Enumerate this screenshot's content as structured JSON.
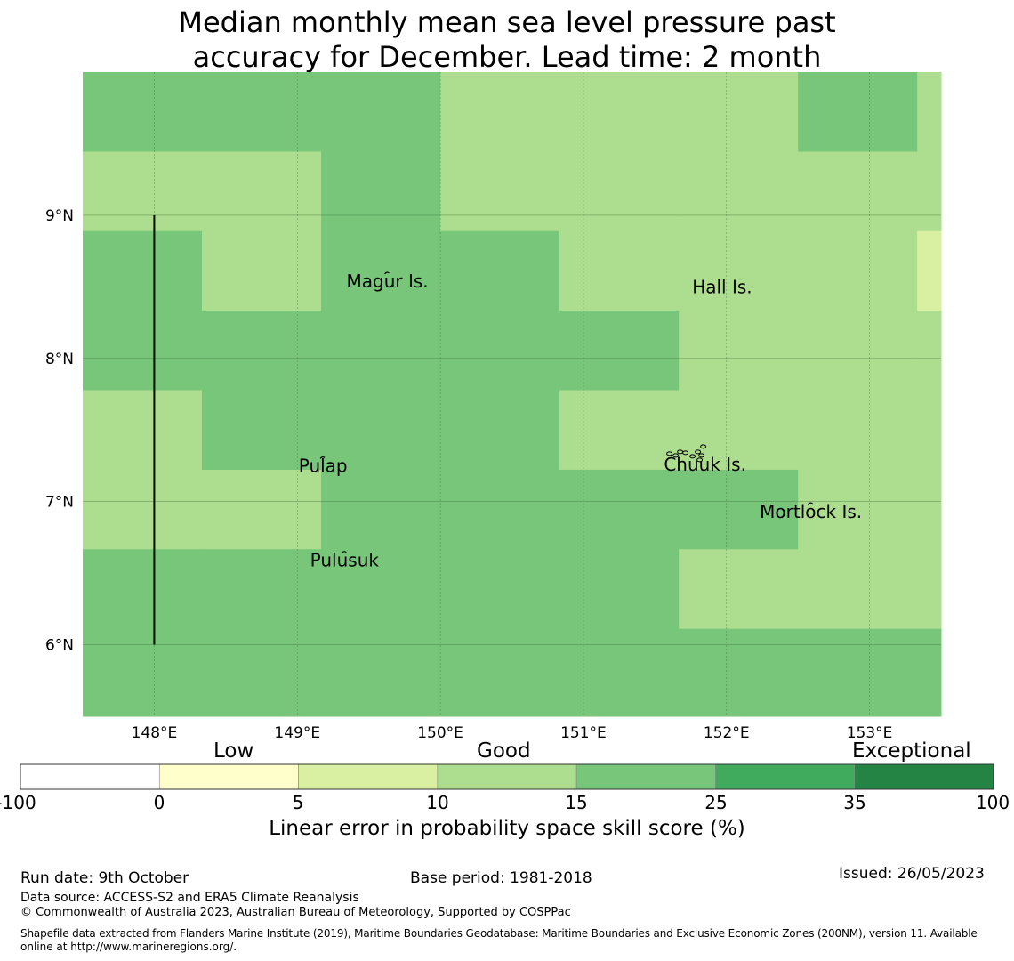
{
  "title": {
    "line1": "Median monthly mean sea level pressure past",
    "line2": "accuracy for December. Lead time: 2 month"
  },
  "map": {
    "lon_range": [
      147.5,
      153.5
    ],
    "lat_range": [
      5.5,
      10.0
    ],
    "lon_ticks": [
      {
        "value": 148,
        "label": "148°E"
      },
      {
        "value": 149,
        "label": "149°E"
      },
      {
        "value": 150,
        "label": "150°E"
      },
      {
        "value": 151,
        "label": "151°E"
      },
      {
        "value": 152,
        "label": "152°E"
      },
      {
        "value": 153,
        "label": "153°E"
      }
    ],
    "lat_ticks": [
      {
        "value": 9,
        "label": "9°N"
      },
      {
        "value": 8,
        "label": "8°N"
      },
      {
        "value": 7,
        "label": "7°N"
      },
      {
        "value": 6,
        "label": "6°N"
      }
    ],
    "grid_lons": [
      147.5,
      148.333,
      149.167,
      150.0,
      150.833,
      151.667,
      152.5,
      153.333,
      153.5
    ],
    "grid_lats": [
      10.0,
      9.444,
      8.889,
      8.333,
      7.778,
      7.222,
      6.667,
      6.111,
      5.5
    ],
    "grid_levels": [
      [
        4,
        4,
        4,
        3,
        3,
        3,
        4,
        3
      ],
      [
        3,
        3,
        4,
        3,
        3,
        3,
        3,
        3
      ],
      [
        4,
        3,
        4,
        4,
        3,
        3,
        3,
        2
      ],
      [
        4,
        4,
        4,
        4,
        4,
        3,
        3,
        3
      ],
      [
        3,
        4,
        4,
        4,
        3,
        3,
        3,
        3
      ],
      [
        3,
        3,
        4,
        4,
        4,
        4,
        3,
        3
      ],
      [
        4,
        4,
        4,
        4,
        4,
        3,
        3,
        3
      ],
      [
        4,
        4,
        4,
        4,
        4,
        4,
        4,
        4
      ]
    ],
    "meridian_line": {
      "lon": 148,
      "lat_from": 6.0,
      "lat_to": 9.0
    },
    "places": [
      {
        "name": "Magur Is.",
        "lon": 149.63,
        "lat": 8.54,
        "island": true
      },
      {
        "name": "Hall Is.",
        "lon": 151.97,
        "lat": 8.5,
        "island": false
      },
      {
        "name": "Pulap",
        "lon": 149.18,
        "lat": 7.25,
        "island": true
      },
      {
        "name": "Chuuk Is.",
        "lon": 151.85,
        "lat": 7.26,
        "island": true
      },
      {
        "name": "Mortlock Is.",
        "lon": 152.59,
        "lat": 6.93,
        "island": true
      },
      {
        "name": "Pulusuk",
        "lon": 149.33,
        "lat": 6.59,
        "island": true
      }
    ]
  },
  "colorbar": {
    "category_labels": [
      "Low",
      "Good",
      "Exceptional"
    ],
    "ticks": [
      "-100",
      "0",
      "5",
      "10",
      "15",
      "25",
      "35",
      "100"
    ],
    "colors": [
      "#ffffff",
      "#ffffcc",
      "#d9f0a3",
      "#addd8e",
      "#78c679",
      "#41ab5d",
      "#238443"
    ],
    "title": "Linear error in probability space skill score (%)"
  },
  "footer": {
    "run_date": "Run date: 9th October",
    "base_period": "Base period: 1981-2018",
    "issued": "Issued: 26/05/2023",
    "data_source": "Data source: ACCESS-S2 and ERA5 Climate Reanalysis",
    "copyright": "© Commonwealth of Australia 2023, Australian Bureau of Meteorology, Supported by COSPPac",
    "shapefile_line1": "Shapefile data extracted from Flanders Marine Institute (2019), Maritime Boundaries Geodatabase: Maritime Boundaries and Exclusive Economic Zones (200NM), version 11. Available",
    "shapefile_line2": "online at http://www.marineregions.org/."
  }
}
